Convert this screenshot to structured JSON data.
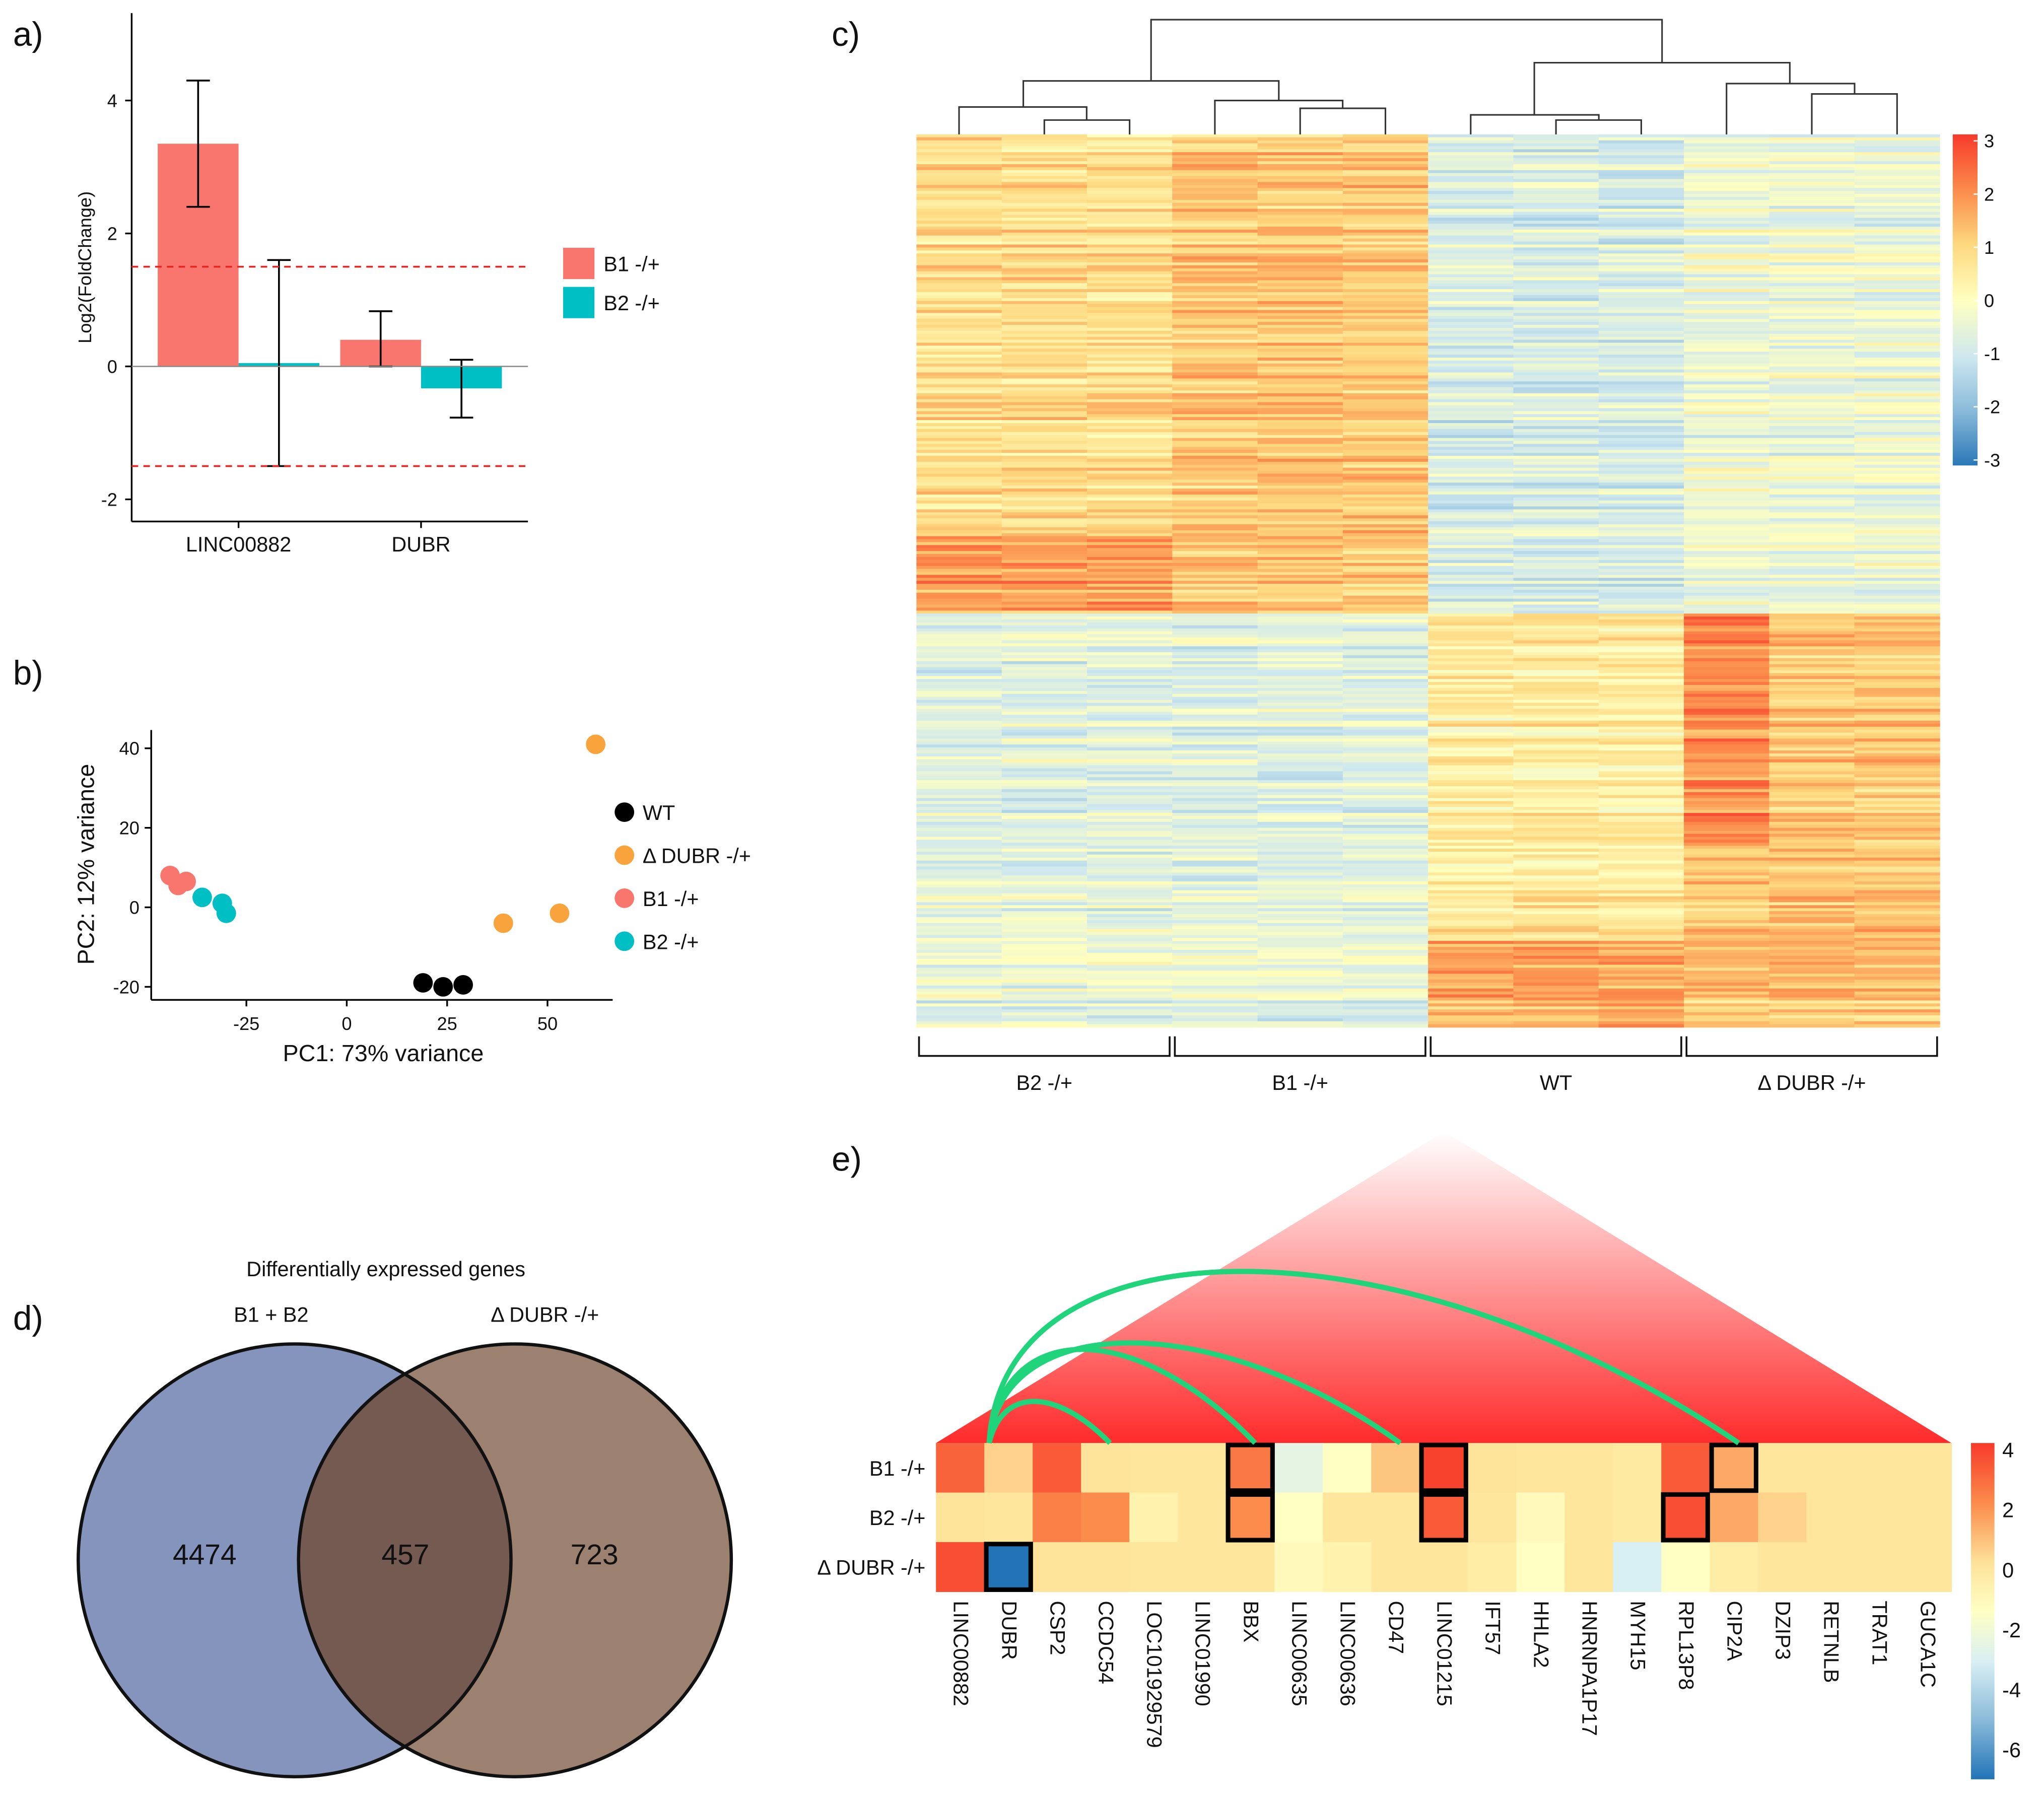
{
  "panel_labels": {
    "a": "a)",
    "b": "b)",
    "c": "c)",
    "d": "d)",
    "e": "e)"
  },
  "colors": {
    "b1": "#f8766d",
    "b2": "#00bfc4",
    "wt": "#000000",
    "dubr": "#f8a33c",
    "venn_left": "#8494bc",
    "venn_right": "#9c8170",
    "venn_overlap": "#755a52",
    "threshold": "#e8261f",
    "arc": "#1fd47a"
  },
  "chart_data": [
    {
      "panel": "a",
      "type": "bar",
      "ylabel": "Log2(FoldChange)",
      "categories": [
        "LINC00882",
        "DUBR"
      ],
      "series": [
        {
          "name": "B1 -/+",
          "color": "#f8766d",
          "values": [
            3.35,
            0.4
          ],
          "err_low": [
            2.4,
            0.0
          ],
          "err_high": [
            4.3,
            0.83
          ]
        },
        {
          "name": "B2 -/+",
          "color": "#00bfc4",
          "values": [
            0.05,
            -0.33
          ],
          "err_low": [
            -1.5,
            -0.77
          ],
          "err_high": [
            1.6,
            0.1
          ]
        }
      ],
      "yticks": [
        "-2",
        "0",
        "2",
        "4"
      ],
      "ylim": [
        -2.3,
        5.3
      ],
      "threshold_lines": [
        1.5,
        -1.5
      ],
      "legend": "right"
    },
    {
      "panel": "b",
      "type": "scatter",
      "xlabel": "PC1: 73% variance",
      "ylabel": "PC2: 12% variance",
      "xticks": [
        "-25",
        "0",
        "25",
        "50"
      ],
      "yticks": [
        "-20",
        "0",
        "20",
        "40"
      ],
      "xlim": [
        -48,
        67
      ],
      "ylim": [
        -22,
        45
      ],
      "legend": "right",
      "series": [
        {
          "name": "WT",
          "color": "#000000",
          "points": [
            [
              19,
              -19
            ],
            [
              24,
              -20
            ],
            [
              29,
              -19.5
            ]
          ]
        },
        {
          "name": "Δ DUBR -/+",
          "color": "#f8a33c",
          "points": [
            [
              39,
              -4
            ],
            [
              53,
              -1.5
            ],
            [
              62,
              41
            ]
          ]
        },
        {
          "name": "B1 -/+",
          "color": "#f8766d",
          "points": [
            [
              -44,
              8
            ],
            [
              -42,
              5.5
            ],
            [
              -40,
              6.5
            ]
          ]
        },
        {
          "name": "B2 -/+",
          "color": "#00bfc4",
          "points": [
            [
              -36,
              2.5
            ],
            [
              -31,
              1
            ],
            [
              -30,
              -1.5
            ]
          ]
        }
      ]
    },
    {
      "panel": "c",
      "type": "heatmap",
      "groups": [
        "B2 -/+",
        "B1 -/+",
        "WT",
        "Δ DUBR -/+"
      ],
      "replicates_per_group": 3,
      "color_range": [
        -3,
        3
      ],
      "colorbar_ticks": [
        "3",
        "2",
        "1",
        "0",
        "-1",
        "-2",
        "-3"
      ],
      "gene_clusters": [
        {
          "cluster": "upper",
          "group_means": [
            0.8,
            1.2,
            -0.8,
            -0.4
          ]
        },
        {
          "cluster": "lower",
          "group_means": [
            -0.6,
            -0.6,
            0.5,
            1.2
          ]
        }
      ],
      "dendrogram": "columns"
    },
    {
      "panel": "d",
      "type": "venn",
      "title": "Differentially expressed genes",
      "sets": [
        "B1 + B2",
        "Δ DUBR -/+"
      ],
      "only_left": "4474",
      "overlap": "457",
      "only_right": "723"
    },
    {
      "panel": "e",
      "type": "heatmap",
      "rows": [
        "B1 -/+",
        "B2 -/+",
        "Δ DUBR -/+"
      ],
      "columns": [
        "LINC00882",
        "DUBR",
        "CSP2",
        "CCDC54",
        "LOC101929579",
        "LINC01990",
        "BBX",
        "LINC00635",
        "LINC00636",
        "CD47",
        "LINC01215",
        "IFT57",
        "HHLA2",
        "HNRNPA1P17",
        "MYH15",
        "RPL13P8",
        "CIP2A",
        "DZIP3",
        "RETNLB",
        "TRAT1",
        "GUCA1C"
      ],
      "values": [
        [
          3.0,
          0.8,
          3.2,
          0.5,
          0.3,
          0.3,
          2.5,
          -3.0,
          -2.0,
          1.0,
          3.8,
          0.5,
          0.3,
          0.3,
          0.0,
          3.2,
          1.5,
          0.3,
          0.3,
          0.3,
          0.3
        ],
        [
          0.5,
          0.3,
          2.3,
          2.0,
          -0.8,
          0.3,
          2.0,
          -2.0,
          0.3,
          0.3,
          3.2,
          0.3,
          -1.5,
          0.3,
          0.0,
          3.5,
          1.5,
          0.8,
          0.3,
          0.3,
          0.3
        ],
        [
          3.5,
          -7.0,
          0.5,
          0.5,
          0.3,
          0.3,
          0.3,
          -1.5,
          -0.8,
          0.3,
          0.3,
          -0.3,
          -2.0,
          0.3,
          -3.5,
          -2.0,
          -0.3,
          0.3,
          0.3,
          0.3,
          0.3
        ]
      ],
      "highlighted": [
        [
          0,
          6
        ],
        [
          1,
          6
        ],
        [
          0,
          10
        ],
        [
          1,
          10
        ],
        [
          0,
          16
        ],
        [
          1,
          15
        ],
        [
          2,
          1
        ]
      ],
      "links_from": "DUBR",
      "links_to": [
        "CCDC54",
        "BBX",
        "CD47",
        "CIP2A"
      ],
      "color_range": [
        -7,
        4
      ],
      "colorbar_ticks": [
        "4",
        "2",
        "0",
        "-2",
        "-4",
        "-6"
      ]
    }
  ]
}
